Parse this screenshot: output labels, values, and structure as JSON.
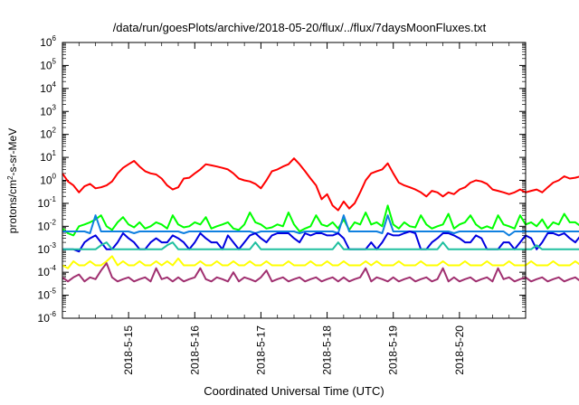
{
  "chart_data": {
    "type": "line",
    "title": "/data/run/goesPlots/archive/2018-05-20/flux/../flux/7daysMoonFluxes.txt",
    "xlabel": "Coordinated Universal Time (UTC)",
    "ylabel": "protons/cm²-s-sr-MeV",
    "y_scale": "log",
    "ylim": [
      1e-06,
      1000000.0
    ],
    "y_ticks": [
      {
        "base": "10",
        "exp": "-6"
      },
      {
        "base": "10",
        "exp": "-5"
      },
      {
        "base": "10",
        "exp": "-4"
      },
      {
        "base": "10",
        "exp": "-3"
      },
      {
        "base": "10",
        "exp": "-2"
      },
      {
        "base": "10",
        "exp": "-1"
      },
      {
        "base": "10",
        "exp": "0"
      },
      {
        "base": "10",
        "exp": "1"
      },
      {
        "base": "10",
        "exp": "2"
      },
      {
        "base": "10",
        "exp": "3"
      },
      {
        "base": "10",
        "exp": "4"
      },
      {
        "base": "10",
        "exp": "5"
      },
      {
        "base": "10",
        "exp": "6"
      }
    ],
    "xlim": [
      "2018-05-14T00:00",
      "2018-05-21T00:00"
    ],
    "x_ticks": [
      "2018-5-15",
      "2018-5-16",
      "2018-5-17",
      "2018-5-18",
      "2018-5-19",
      "2018-5-20"
    ],
    "x_tick_dates": [
      "2018-05-15",
      "2018-05-16",
      "2018-05-17",
      "2018-05-18",
      "2018-05-19",
      "2018-05-20"
    ],
    "grid": false,
    "x_start": "2018-05-14T00:00",
    "x_step_hours": 2,
    "series": [
      {
        "color": "#ff0000",
        "values": [
          2,
          0.9,
          0.6,
          0.3,
          0.55,
          0.7,
          0.45,
          0.5,
          0.6,
          0.9,
          2,
          3.5,
          5,
          7,
          4,
          2.5,
          2,
          1.8,
          1.2,
          0.6,
          0.4,
          0.5,
          1.2,
          1.3,
          2,
          3,
          5,
          4.5,
          4,
          3.5,
          3,
          2,
          1.2,
          1,
          0.9,
          0.7,
          0.45,
          1,
          2.5,
          3,
          4,
          5,
          9,
          5,
          2.5,
          1.2,
          0.6,
          0.15,
          0.25,
          0.08,
          0.05,
          0.12,
          0.06,
          0.1,
          0.3,
          1,
          2,
          2.5,
          3,
          5.5,
          2,
          0.8,
          0.6,
          0.5,
          0.4,
          0.3,
          0.2,
          0.35,
          0.3,
          0.2,
          0.3,
          0.25,
          0.4,
          0.5,
          0.8,
          1,
          0.9,
          0.7,
          0.4,
          0.35,
          0.3,
          0.25,
          0.3,
          0.4,
          0.3,
          0.35,
          0.4,
          0.3,
          0.5,
          0.8,
          1,
          1.5,
          1.2,
          1.3,
          1.5,
          1.6,
          1.2,
          0.5,
          0.3,
          0.2,
          0.15,
          0.25,
          0.35,
          0.3,
          0.45,
          0.5,
          0.6,
          0.8,
          1,
          1.1,
          1.2,
          1,
          1.2,
          1,
          1.5,
          0.7
        ]
      },
      {
        "color": "#00ff00",
        "values": [
          0.008,
          0.005,
          0.004,
          0.01,
          0.012,
          0.015,
          0.02,
          0.03,
          0.01,
          0.007,
          0.015,
          0.025,
          0.012,
          0.009,
          0.015,
          0.008,
          0.01,
          0.015,
          0.012,
          0.008,
          0.03,
          0.012,
          0.009,
          0.01,
          0.015,
          0.012,
          0.025,
          0.008,
          0.01,
          0.012,
          0.015,
          0.008,
          0.007,
          0.012,
          0.04,
          0.015,
          0.012,
          0.008,
          0.009,
          0.012,
          0.01,
          0.04,
          0.012,
          0.006,
          0.008,
          0.01,
          0.03,
          0.012,
          0.01,
          0.015,
          0.008,
          0.02,
          0.007,
          0.015,
          0.012,
          0.04,
          0.012,
          0.015,
          0.01,
          0.08,
          0.012,
          0.008,
          0.015,
          0.01,
          0.009,
          0.03,
          0.012,
          0.008,
          0.01,
          0.012,
          0.035,
          0.008,
          0.012,
          0.015,
          0.03,
          0.012,
          0.008,
          0.01,
          0.008,
          0.03,
          0.012,
          0.01,
          0.008,
          0.03,
          0.012,
          0.015,
          0.01,
          0.02,
          0.008,
          0.015,
          0.012,
          0.035,
          0.015,
          0.015,
          0.01,
          0.012,
          0.008,
          0.03,
          0.01,
          0.015,
          0.012,
          0.008,
          0.04,
          0.012,
          0.015,
          0.01,
          0.012,
          0.008,
          0.03,
          0.012,
          0.015,
          0.01,
          0.012,
          0.015,
          0.05,
          0.012
        ]
      },
      {
        "color": "#1080e0",
        "values": [
          0.006,
          0.006,
          0.006,
          0.006,
          0.006,
          0.005,
          0.03,
          0.006,
          0.006,
          0.006,
          0.006,
          0.006,
          0.006,
          0.005,
          0.006,
          0.006,
          0.006,
          0.006,
          0.006,
          0.006,
          0.006,
          0.006,
          0.005,
          0.006,
          0.006,
          0.006,
          0.006,
          0.006,
          0.006,
          0.006,
          0.006,
          0.006,
          0.006,
          0.006,
          0.006,
          0.005,
          0.006,
          0.006,
          0.006,
          0.006,
          0.006,
          0.006,
          0.006,
          0.005,
          0.006,
          0.006,
          0.006,
          0.006,
          0.006,
          0.006,
          0.005,
          0.03,
          0.006,
          0.006,
          0.006,
          0.006,
          0.006,
          0.006,
          0.005,
          0.03,
          0.006,
          0.006,
          0.006,
          0.006,
          0.006,
          0.006,
          0.006,
          0.006,
          0.006,
          0.006,
          0.006,
          0.005,
          0.006,
          0.006,
          0.006,
          0.006,
          0.006,
          0.006,
          0.006,
          0.006,
          0.006,
          0.004,
          0.006,
          0.006,
          0.006,
          0.006,
          0.006,
          0.006,
          0.006,
          0.006,
          0.006,
          0.006,
          0.006,
          0.006,
          0.006,
          0.006,
          0.03,
          0.006,
          0.006,
          0.006,
          0.006,
          0.006,
          0.006,
          0.006,
          0.006,
          0.006,
          0.006,
          0.006,
          0.006,
          0.006,
          0.005,
          0.006,
          0.006,
          0.006,
          0.006,
          0.006
        ]
      },
      {
        "color": "#0000e0",
        "values": [
          0.001,
          0.001,
          0.001,
          0.0008,
          0.002,
          0.003,
          0.004,
          0.002,
          0.001,
          0.001,
          0.002,
          0.005,
          0.003,
          0.002,
          0.001,
          0.001,
          0.002,
          0.003,
          0.002,
          0.002,
          0.004,
          0.003,
          0.002,
          0.001,
          0.002,
          0.005,
          0.003,
          0.002,
          0.002,
          0.001,
          0.004,
          0.002,
          0.001,
          0.002,
          0.004,
          0.005,
          0.003,
          0.002,
          0.004,
          0.005,
          0.005,
          0.005,
          0.003,
          0.002,
          0.005,
          0.004,
          0.005,
          0.005,
          0.004,
          0.004,
          0.005,
          0.003,
          0.001,
          0.001,
          0.001,
          0.001,
          0.002,
          0.001,
          0.002,
          0.005,
          0.004,
          0.004,
          0.005,
          0.006,
          0.005,
          0.001,
          0.001,
          0.002,
          0.003,
          0.005,
          0.005,
          0.004,
          0.003,
          0.002,
          0.002,
          0.004,
          0.003,
          0.001,
          0.001,
          0.001,
          0.002,
          0.002,
          0.001,
          0.002,
          0.004,
          0.003,
          0.001,
          0.002,
          0.005,
          0.005,
          0.004,
          0.005,
          0.003,
          0.002,
          0.004,
          0.005,
          0.005,
          0.004,
          0.003,
          0.002,
          0.0008,
          0.002,
          0.003,
          0.002,
          0.002,
          0.001,
          0.002,
          0.002,
          0.004,
          0.003,
          0.002,
          0.002,
          0.004,
          0.005,
          0.004,
          0.003
        ]
      },
      {
        "color": "#20c0a0",
        "values": [
          0.001,
          0.001,
          0.001,
          0.001,
          0.001,
          0.001,
          0.001,
          0.0015,
          0.002,
          0.001,
          0.001,
          0.001,
          0.001,
          0.001,
          0.001,
          0.001,
          0.001,
          0.001,
          0.001,
          0.0015,
          0.002,
          0.001,
          0.001,
          0.001,
          0.001,
          0.001,
          0.001,
          0.001,
          0.001,
          0.001,
          0.001,
          0.001,
          0.001,
          0.001,
          0.001,
          0.002,
          0.001,
          0.001,
          0.001,
          0.001,
          0.001,
          0.001,
          0.001,
          0.001,
          0.001,
          0.001,
          0.001,
          0.001,
          0.001,
          0.001,
          0.002,
          0.001,
          0.001,
          0.001,
          0.001,
          0.001,
          0.001,
          0.001,
          0.001,
          0.001,
          0.001,
          0.001,
          0.001,
          0.001,
          0.001,
          0.001,
          0.001,
          0.001,
          0.001,
          0.002,
          0.001,
          0.001,
          0.001,
          0.001,
          0.001,
          0.001,
          0.001,
          0.001,
          0.001,
          0.001,
          0.001,
          0.001,
          0.001,
          0.001,
          0.001,
          0.001,
          0.0015,
          0.001,
          0.001,
          0.001,
          0.001,
          0.001,
          0.001,
          0.001,
          0.001,
          0.001,
          0.002,
          0.001,
          0.001,
          0.001,
          0.001,
          0.001,
          0.001,
          0.001,
          0.001,
          0.001,
          0.001,
          0.001,
          0.001,
          0.001,
          0.001,
          0.001,
          0.001,
          0.001,
          0.001,
          0.001
        ]
      },
      {
        "color": "#ffff00",
        "values": [
          0.0002,
          0.00015,
          0.0003,
          0.0002,
          0.0002,
          0.0003,
          0.0002,
          0.0002,
          0.0003,
          0.0005,
          0.0002,
          0.0003,
          0.0002,
          0.0002,
          0.0003,
          0.0002,
          0.0002,
          0.0003,
          0.0002,
          0.0003,
          0.0002,
          0.0004,
          0.0002,
          0.0002,
          0.0002,
          0.0003,
          0.0002,
          0.0002,
          0.0003,
          0.0002,
          0.0002,
          0.0003,
          0.0002,
          0.0002,
          0.0003,
          0.0002,
          0.0002,
          0.0003,
          0.0002,
          0.0002,
          0.0002,
          0.0003,
          0.0002,
          0.0002,
          0.0002,
          0.0003,
          0.0002,
          0.0002,
          0.0003,
          0.0002,
          0.0002,
          0.0003,
          0.0002,
          0.0002,
          0.0002,
          0.0003,
          0.0002,
          0.0003,
          0.0002,
          0.0002,
          0.0002,
          0.0003,
          0.0002,
          0.0002,
          0.0002,
          0.0003,
          0.0002,
          0.0002,
          0.0002,
          0.0003,
          0.0002,
          0.0002,
          0.0002,
          0.0003,
          0.0002,
          0.0002,
          0.0002,
          0.0003,
          0.0002,
          0.0002,
          0.0002,
          0.0003,
          0.0002,
          0.0002,
          0.0002,
          0.0003,
          0.0002,
          0.0002,
          0.0002,
          0.0003,
          0.0002,
          0.0002,
          0.0002,
          0.0003,
          0.0002,
          0.0002,
          0.0002,
          0.0003,
          0.0002,
          0.0002,
          0.0002,
          0.0003,
          0.0002,
          0.0002,
          0.0002,
          0.0003,
          0.0002,
          0.0002,
          0.0002,
          0.0003,
          0.0002,
          0.0002,
          0.0002,
          0.0003,
          0.0002,
          0.0002
        ]
      },
      {
        "color": "#a03070",
        "values": [
          6e-05,
          4e-05,
          6e-05,
          8e-05,
          4e-05,
          6e-05,
          5e-05,
          0.00012,
          0.00025,
          6e-05,
          4e-05,
          5e-05,
          6e-05,
          4e-05,
          5e-05,
          6e-05,
          4e-05,
          0.00015,
          5e-05,
          6e-05,
          4e-05,
          6e-05,
          4e-05,
          5e-05,
          6e-05,
          0.00015,
          5e-05,
          4e-05,
          6e-05,
          5e-05,
          4e-05,
          0.0001,
          4e-05,
          6e-05,
          5e-05,
          4e-05,
          6e-05,
          0.00012,
          4e-05,
          5e-05,
          6e-05,
          4e-05,
          5e-05,
          6e-05,
          4e-05,
          5e-05,
          6e-05,
          4e-05,
          5e-05,
          6e-05,
          4e-05,
          6e-05,
          4e-05,
          5e-05,
          6e-05,
          0.00015,
          4e-05,
          6e-05,
          5e-05,
          4e-05,
          6e-05,
          4e-05,
          5e-05,
          6e-05,
          4e-05,
          5e-05,
          6e-05,
          4e-05,
          5e-05,
          0.00015,
          4e-05,
          6e-05,
          4e-05,
          5e-05,
          6e-05,
          4e-05,
          5e-05,
          6e-05,
          4e-05,
          0.00015,
          5e-05,
          6e-05,
          4e-05,
          5e-05,
          6e-05,
          4e-05,
          5e-05,
          6e-05,
          4e-05,
          5e-05,
          6e-05,
          4e-05,
          5e-05,
          6e-05,
          4e-05,
          0.00015,
          5e-05,
          6e-05,
          4e-05,
          5e-05,
          6e-05,
          4e-05,
          5e-05,
          6e-05,
          4e-05,
          5e-05,
          6e-05,
          4e-05,
          5e-05,
          6e-05,
          4e-05,
          5e-05,
          6e-05,
          4e-05,
          5e-05,
          6e-05
        ]
      }
    ]
  }
}
